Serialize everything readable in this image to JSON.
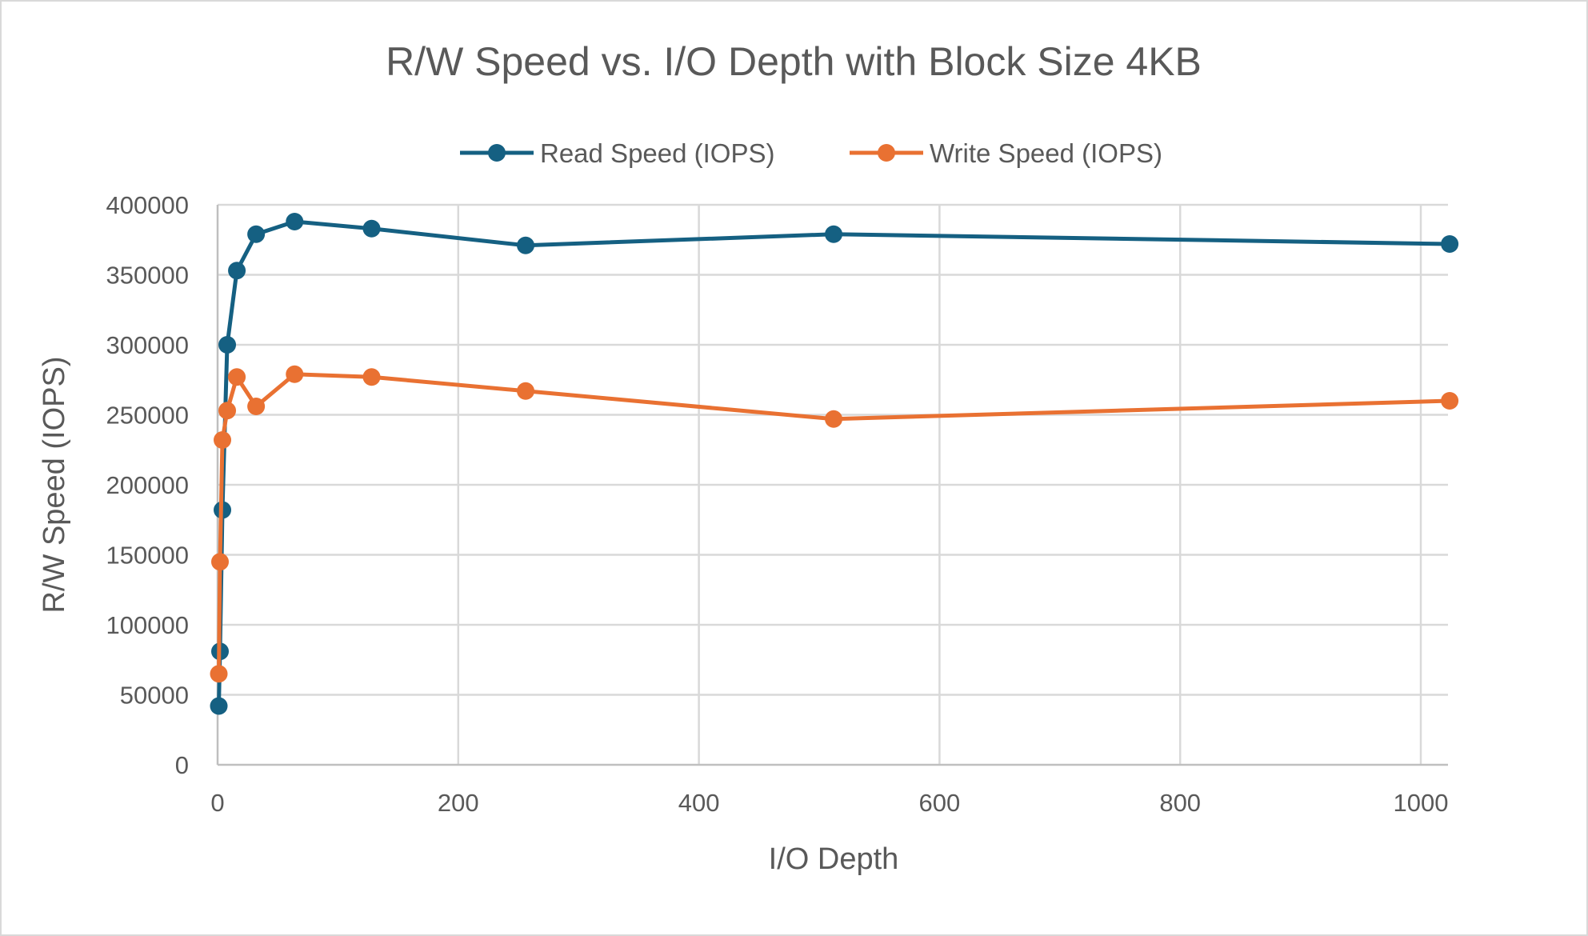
{
  "chart_data": {
    "type": "line",
    "title": "R/W Speed vs. I/O Depth with Block Size 4KB",
    "xlabel": "I/O Depth",
    "ylabel": "R/W Speed (IOPS)",
    "xlim": [
      0,
      1024
    ],
    "ylim": [
      0,
      400000
    ],
    "x_ticks": [
      0,
      200,
      400,
      600,
      800,
      1000
    ],
    "y_ticks": [
      0,
      50000,
      100000,
      150000,
      200000,
      250000,
      300000,
      350000,
      400000
    ],
    "grid": true,
    "legend_position": "top",
    "x": [
      1,
      2,
      4,
      8,
      16,
      32,
      64,
      128,
      256,
      512,
      1024
    ],
    "series": [
      {
        "name": "Read Speed (IOPS)",
        "color": "#156082",
        "values": [
          42000,
          81000,
          182000,
          300000,
          353000,
          379000,
          388000,
          383000,
          371000,
          379000,
          372000
        ]
      },
      {
        "name": "Write Speed (IOPS)",
        "color": "#E97132",
        "values": [
          65000,
          145000,
          232000,
          253000,
          277000,
          256000,
          279000,
          277000,
          267000,
          247000,
          260000
        ]
      }
    ]
  }
}
